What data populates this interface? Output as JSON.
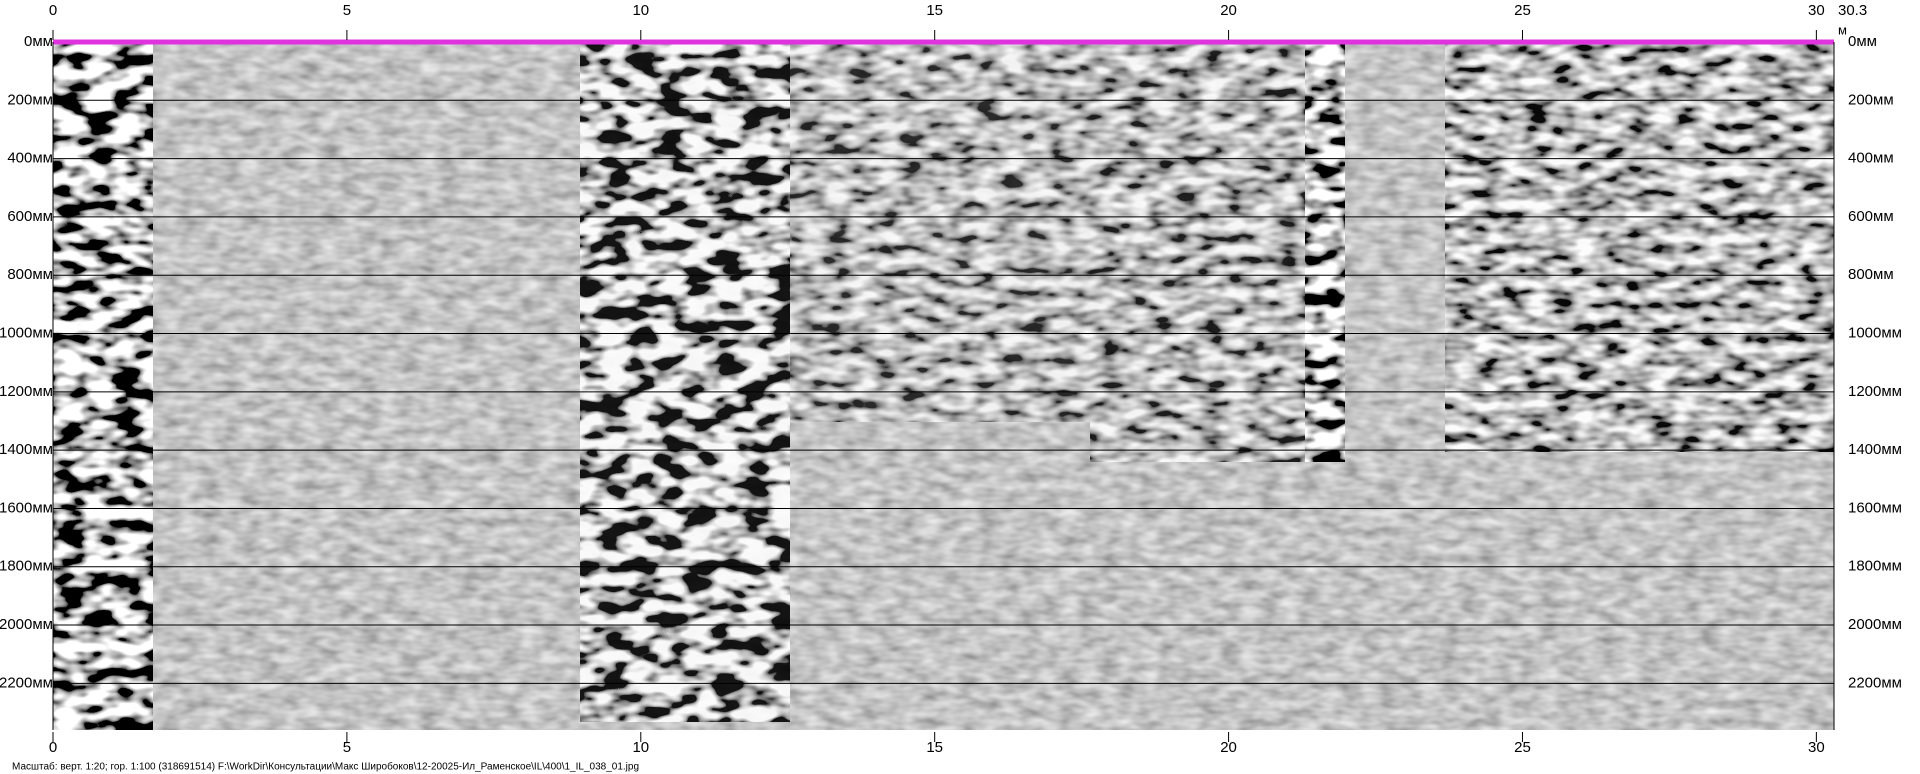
{
  "chart_data": {
    "type": "radargram",
    "x_unit": "м",
    "xlim": [
      0,
      30.3
    ],
    "xticks": [
      0,
      5,
      10,
      15,
      20,
      25,
      30
    ],
    "x_end_label": "30.3",
    "ylim": [
      0,
      2360
    ],
    "yticks": [
      {
        "value": 0,
        "label": "0мм"
      },
      {
        "value": 200,
        "label": "200мм"
      },
      {
        "value": 400,
        "label": "400мм"
      },
      {
        "value": 600,
        "label": "600мм"
      },
      {
        "value": 800,
        "label": "800мм"
      },
      {
        "value": 1000,
        "label": "1000мм"
      },
      {
        "value": 1200,
        "label": "1200мм"
      },
      {
        "value": 1400,
        "label": "1400мм"
      },
      {
        "value": 1600,
        "label": "1600мм"
      },
      {
        "value": 1800,
        "label": "1800мм"
      },
      {
        "value": 2000,
        "label": "2000мм"
      },
      {
        "value": 2200,
        "label": "2200мм"
      }
    ],
    "grid": true,
    "grid_color": "#000000",
    "surface_color": "#e033e0",
    "footer": "Масштаб: верт. 1:20; гор. 1:100 (318691514) F:\\WorkDir\\Консультации\\Макс Широбоков\\12-20025-Ил_Раменское\\IL\\400\\1_IL_038_01.jpg"
  }
}
